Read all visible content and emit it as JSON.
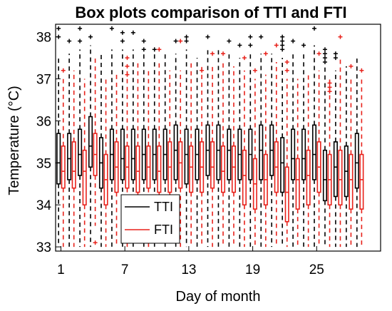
{
  "chart_data": {
    "type": "box",
    "title": "Box plots comparison of TTI and FTI",
    "xlabel": "Day of month",
    "ylabel": "Temperature (°C)",
    "ylim": [
      32.9,
      38.3
    ],
    "xlim": [
      0.5,
      31
    ],
    "yticks": [
      "33",
      "34",
      "35",
      "36",
      "37",
      "38"
    ],
    "xticks": [
      "1",
      "7",
      "13",
      "19",
      "25"
    ],
    "legend_position": "lower-left",
    "series": [
      {
        "name": "TTI",
        "color": "#000000",
        "boxes": [
          {
            "day": 1,
            "lw": 33.0,
            "q1": 34.5,
            "med": 35.0,
            "q3": 35.7,
            "uw": 37.5,
            "out": [
              38.2,
              38.0
            ]
          },
          {
            "day": 2,
            "lw": 33.0,
            "q1": 34.6,
            "med": 35.1,
            "q3": 35.7,
            "uw": 37.6,
            "out": [
              37.9
            ]
          },
          {
            "day": 3,
            "lw": 33.0,
            "q1": 34.7,
            "med": 35.2,
            "q3": 35.8,
            "uw": 37.7,
            "out": [
              38.2,
              37.9
            ]
          },
          {
            "day": 4,
            "lw": 33.0,
            "q1": 34.9,
            "med": 35.4,
            "q3": 36.1,
            "uw": 37.8,
            "out": [
              38.0
            ]
          },
          {
            "day": 5,
            "lw": 33.0,
            "q1": 34.4,
            "med": 35.0,
            "q3": 35.6,
            "uw": 37.6,
            "out": []
          },
          {
            "day": 6,
            "lw": 33.0,
            "q1": 34.6,
            "med": 35.2,
            "q3": 35.8,
            "uw": 37.7,
            "out": [
              38.2
            ]
          },
          {
            "day": 7,
            "lw": 33.0,
            "q1": 34.6,
            "med": 35.1,
            "q3": 35.8,
            "uw": 37.7,
            "out": [
              38.1,
              37.9
            ]
          },
          {
            "day": 8,
            "lw": 33.0,
            "q1": 34.6,
            "med": 35.1,
            "q3": 35.8,
            "uw": 37.7,
            "out": [
              38.1
            ]
          },
          {
            "day": 9,
            "lw": 33.0,
            "q1": 34.6,
            "med": 35.2,
            "q3": 35.8,
            "uw": 37.6,
            "out": [
              37.9,
              37.7
            ]
          },
          {
            "day": 10,
            "lw": 33.0,
            "q1": 34.6,
            "med": 35.2,
            "q3": 35.8,
            "uw": 37.6,
            "out": [
              37.7
            ]
          },
          {
            "day": 11,
            "lw": 33.0,
            "q1": 34.6,
            "med": 35.2,
            "q3": 35.8,
            "uw": 37.6,
            "out": []
          },
          {
            "day": 12,
            "lw": 33.0,
            "q1": 34.6,
            "med": 35.3,
            "q3": 35.9,
            "uw": 37.6,
            "out": [
              37.9
            ]
          },
          {
            "day": 13,
            "lw": 33.0,
            "q1": 34.5,
            "med": 35.2,
            "q3": 35.8,
            "uw": 37.7,
            "out": [
              38.0,
              37.9
            ]
          },
          {
            "day": 14,
            "lw": 33.0,
            "q1": 34.6,
            "med": 35.2,
            "q3": 35.8,
            "uw": 37.5,
            "out": []
          },
          {
            "day": 15,
            "lw": 33.0,
            "q1": 34.7,
            "med": 35.3,
            "q3": 35.9,
            "uw": 37.7,
            "out": [
              38.0
            ]
          },
          {
            "day": 16,
            "lw": 33.0,
            "q1": 34.6,
            "med": 35.3,
            "q3": 35.9,
            "uw": 37.7,
            "out": []
          },
          {
            "day": 17,
            "lw": 33.0,
            "q1": 34.6,
            "med": 35.3,
            "q3": 35.8,
            "uw": 37.6,
            "out": [
              37.9
            ]
          },
          {
            "day": 18,
            "lw": 33.0,
            "q1": 34.6,
            "med": 35.2,
            "q3": 35.8,
            "uw": 37.5,
            "out": [
              37.8
            ]
          },
          {
            "day": 19,
            "lw": 33.0,
            "q1": 34.6,
            "med": 35.2,
            "q3": 35.8,
            "uw": 37.6,
            "out": [
              38.0,
              37.8
            ]
          },
          {
            "day": 20,
            "lw": 33.0,
            "q1": 34.6,
            "med": 35.3,
            "q3": 35.9,
            "uw": 37.6,
            "out": [
              38.0
            ]
          },
          {
            "day": 21,
            "lw": 33.0,
            "q1": 34.7,
            "med": 35.3,
            "q3": 35.9,
            "uw": 37.6,
            "out": []
          },
          {
            "day": 22,
            "lw": 33.0,
            "q1": 34.3,
            "med": 35.0,
            "q3": 35.6,
            "uw": 37.5,
            "out": [
              38.0,
              37.9,
              37.8,
              37.7
            ]
          },
          {
            "day": 23,
            "lw": 33.0,
            "q1": 34.6,
            "med": 35.1,
            "q3": 35.8,
            "uw": 37.6,
            "out": [
              37.9
            ]
          },
          {
            "day": 24,
            "lw": 33.0,
            "q1": 34.6,
            "med": 35.1,
            "q3": 35.8,
            "uw": 37.6,
            "out": [
              37.8
            ]
          },
          {
            "day": 25,
            "lw": 33.0,
            "q1": 34.6,
            "med": 35.2,
            "q3": 35.9,
            "uw": 37.8,
            "out": [
              38.2
            ]
          },
          {
            "day": 26,
            "lw": 33.0,
            "q1": 34.1,
            "med": 34.6,
            "q3": 35.3,
            "uw": 37.3,
            "out": [
              37.7,
              37.6,
              37.5,
              37.4
            ]
          },
          {
            "day": 27,
            "lw": 33.0,
            "q1": 34.2,
            "med": 34.9,
            "q3": 35.5,
            "uw": 37.2,
            "out": [
              37.6,
              37.5
            ]
          },
          {
            "day": 28,
            "lw": 33.0,
            "q1": 34.2,
            "med": 34.8,
            "q3": 35.4,
            "uw": 37.3,
            "out": []
          },
          {
            "day": 29,
            "lw": 33.0,
            "q1": 34.4,
            "med": 35.0,
            "q3": 35.7,
            "uw": 37.5,
            "out": []
          }
        ]
      },
      {
        "name": "FTI",
        "color": "#e8221b",
        "boxes": [
          {
            "day": 1,
            "lw": 33.0,
            "q1": 34.4,
            "med": 34.8,
            "q3": 35.4,
            "uw": 37.0,
            "out": [
              37.2
            ]
          },
          {
            "day": 2,
            "lw": 33.0,
            "q1": 34.4,
            "med": 34.8,
            "q3": 35.5,
            "uw": 37.2,
            "out": []
          },
          {
            "day": 3,
            "lw": 33.0,
            "q1": 34.0,
            "med": 34.8,
            "q3": 35.3,
            "uw": 37.0,
            "out": []
          },
          {
            "day": 4,
            "lw": 33.5,
            "q1": 34.7,
            "med": 35.2,
            "q3": 35.7,
            "uw": 37.5,
            "out": [
              33.1
            ]
          },
          {
            "day": 5,
            "lw": 33.0,
            "q1": 34.0,
            "med": 34.6,
            "q3": 35.2,
            "uw": 37.0,
            "out": []
          },
          {
            "day": 6,
            "lw": 33.0,
            "q1": 34.3,
            "med": 34.9,
            "q3": 35.5,
            "uw": 37.1,
            "out": []
          },
          {
            "day": 7,
            "lw": 33.0,
            "q1": 34.4,
            "med": 34.9,
            "q3": 35.4,
            "uw": 37.2,
            "out": [
              37.5,
              37.3,
              37.1
            ]
          },
          {
            "day": 8,
            "lw": 33.0,
            "q1": 34.3,
            "med": 34.8,
            "q3": 35.4,
            "uw": 37.4,
            "out": []
          },
          {
            "day": 9,
            "lw": 33.0,
            "q1": 34.4,
            "med": 34.9,
            "q3": 35.4,
            "uw": 37.2,
            "out": []
          },
          {
            "day": 10,
            "lw": 33.0,
            "q1": 34.3,
            "med": 34.8,
            "q3": 35.4,
            "uw": 37.4,
            "out": [
              37.7
            ]
          },
          {
            "day": 11,
            "lw": 33.0,
            "q1": 34.3,
            "med": 34.9,
            "q3": 35.5,
            "uw": 37.2,
            "out": []
          },
          {
            "day": 12,
            "lw": 33.0,
            "q1": 34.4,
            "med": 35.0,
            "q3": 35.5,
            "uw": 37.2,
            "out": [
              37.9
            ]
          },
          {
            "day": 13,
            "lw": 33.0,
            "q1": 34.3,
            "med": 34.9,
            "q3": 35.4,
            "uw": 37.4,
            "out": []
          },
          {
            "day": 14,
            "lw": 33.0,
            "q1": 34.3,
            "med": 34.9,
            "q3": 35.5,
            "uw": 37.3,
            "out": [
              37.2
            ]
          },
          {
            "day": 15,
            "lw": 33.0,
            "q1": 34.4,
            "med": 34.9,
            "q3": 35.5,
            "uw": 37.3,
            "out": [
              37.6
            ]
          },
          {
            "day": 16,
            "lw": 33.0,
            "q1": 34.3,
            "med": 34.8,
            "q3": 35.4,
            "uw": 37.4,
            "out": [
              37.6
            ]
          },
          {
            "day": 17,
            "lw": 33.0,
            "q1": 34.3,
            "med": 34.9,
            "q3": 35.4,
            "uw": 37.3,
            "out": []
          },
          {
            "day": 18,
            "lw": 33.0,
            "q1": 34.0,
            "med": 34.7,
            "q3": 35.3,
            "uw": 37.2,
            "out": [
              37.5
            ]
          },
          {
            "day": 19,
            "lw": 33.0,
            "q1": 33.9,
            "med": 34.5,
            "q3": 35.1,
            "uw": 37.0,
            "out": [
              37.2
            ]
          },
          {
            "day": 20,
            "lw": 33.0,
            "q1": 34.0,
            "med": 34.6,
            "q3": 35.2,
            "uw": 37.1,
            "out": [
              37.6
            ]
          },
          {
            "day": 21,
            "lw": 33.0,
            "q1": 34.3,
            "med": 34.9,
            "q3": 35.5,
            "uw": 37.4,
            "out": [
              37.8
            ]
          },
          {
            "day": 22,
            "lw": 33.0,
            "q1": 33.6,
            "med": 34.3,
            "q3": 34.9,
            "uw": 37.0,
            "out": [
              37.4,
              37.2
            ]
          },
          {
            "day": 23,
            "lw": 33.0,
            "q1": 33.9,
            "med": 34.6,
            "q3": 35.1,
            "uw": 37.0,
            "out": []
          },
          {
            "day": 24,
            "lw": 33.0,
            "q1": 34.0,
            "med": 34.7,
            "q3": 35.3,
            "uw": 37.1,
            "out": []
          },
          {
            "day": 25,
            "lw": 33.0,
            "q1": 34.3,
            "med": 34.9,
            "q3": 35.5,
            "uw": 37.2,
            "out": [
              37.6
            ]
          },
          {
            "day": 26,
            "lw": 33.0,
            "q1": 34.0,
            "med": 34.6,
            "q3": 35.2,
            "uw": 37.0,
            "out": [
              36.9,
              36.8,
              36.7
            ]
          },
          {
            "day": 27,
            "lw": 33.0,
            "q1": 34.0,
            "med": 34.6,
            "q3": 35.3,
            "uw": 37.5,
            "out": [
              38.0
            ]
          },
          {
            "day": 28,
            "lw": 33.0,
            "q1": 33.9,
            "med": 34.6,
            "q3": 35.2,
            "uw": 37.0,
            "out": [
              37.3
            ]
          },
          {
            "day": 29,
            "lw": 33.0,
            "q1": 33.9,
            "med": 34.6,
            "q3": 35.2,
            "uw": 37.0,
            "out": [
              37.2
            ]
          }
        ]
      }
    ]
  }
}
